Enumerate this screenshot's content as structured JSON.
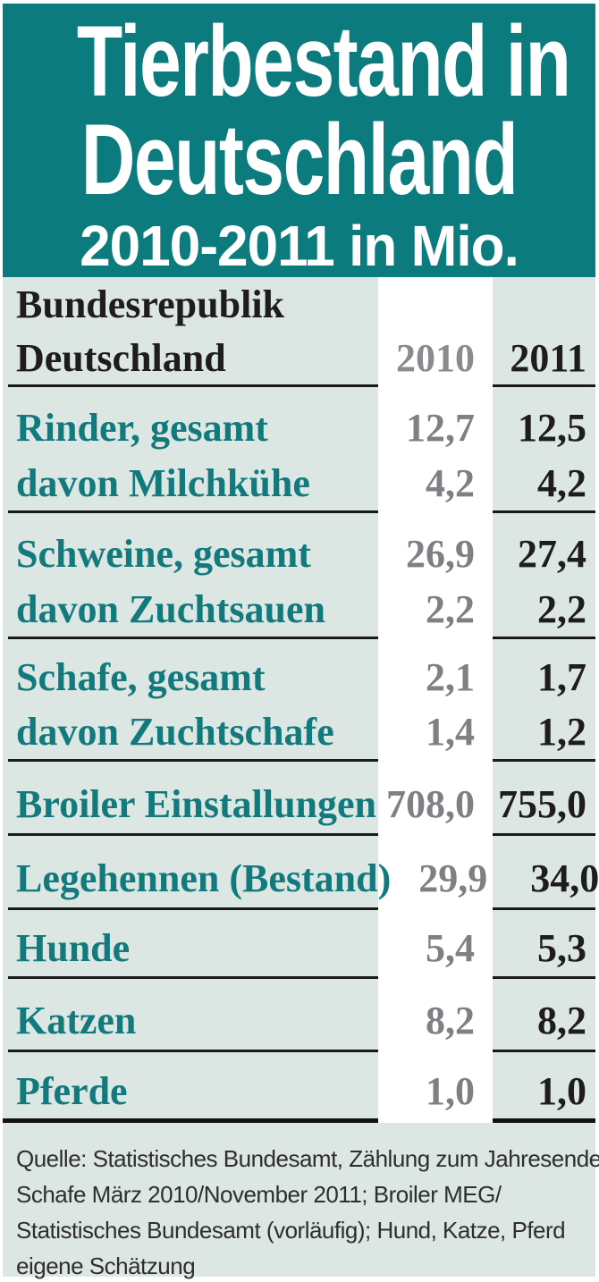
{
  "header": {
    "title_line1": "Tierbestand in",
    "title_line2": "Deutschland",
    "subtitle": "2010-2011 in Mio."
  },
  "table": {
    "region_line1": "Bundesrepublik",
    "region_line2": "Deutschland",
    "col_2010": "2010",
    "col_2011": "2011",
    "groups": [
      {
        "rows": [
          {
            "label": "Rinder, gesamt",
            "v2010": "12,7",
            "v2011": "12,5"
          },
          {
            "label": "davon Milchkühe",
            "v2010": "4,2",
            "v2011": "4,2"
          }
        ]
      },
      {
        "rows": [
          {
            "label": "Schweine, gesamt",
            "v2010": "26,9",
            "v2011": "27,4"
          },
          {
            "label": "davon Zuchtsauen",
            "v2010": "2,2",
            "v2011": "2,2"
          }
        ]
      },
      {
        "rows": [
          {
            "label": "Schafe, gesamt",
            "v2010": "2,1",
            "v2011": "1,7"
          },
          {
            "label": "davon Zuchtschafe",
            "v2010": "1,4",
            "v2011": "1,2"
          }
        ]
      },
      {
        "rows": [
          {
            "label": "Broiler Einstallungen",
            "v2010": "708,0",
            "v2011": "755,0"
          }
        ]
      },
      {
        "rows": [
          {
            "label": "Legehennen (Bestand)",
            "v2010": "29,9",
            "v2011": "34,0"
          }
        ]
      },
      {
        "rows": [
          {
            "label": "Hunde",
            "v2010": "5,4",
            "v2011": "5,3"
          }
        ]
      },
      {
        "rows": [
          {
            "label": "Katzen",
            "v2010": "8,2",
            "v2011": "8,2"
          }
        ]
      },
      {
        "rows": [
          {
            "label": "Pferde",
            "v2010": "1,0",
            "v2011": "1,0"
          }
        ]
      }
    ]
  },
  "footer": {
    "lines": [
      "Quelle: Statistisches Bundesamt, Zählung zum Jahresende,",
      "Schafe März 2010/November 2011; Broiler MEG/",
      "Statistisches Bundesamt (vorläufig); Hund, Katze, Pferd",
      "eigene Schätzung"
    ]
  },
  "colors": {
    "teal_header": "#0c7b7d",
    "teal_label": "#127a7d",
    "light_background": "#dce6e2",
    "highlight_band": "#ffffff",
    "gray_2010": "#7e8083",
    "black_2011": "#1e1c1d",
    "rule": "#1a1a1a"
  },
  "chart_data": {
    "type": "table",
    "title": "Tierbestand in Deutschland",
    "subtitle": "2010-2011 in Mio.",
    "region": "Bundesrepublik Deutschland",
    "unit": "Mio.",
    "categories": [
      "Rinder, gesamt",
      "davon Milchkühe",
      "Schweine, gesamt",
      "davon Zuchtsauen",
      "Schafe, gesamt",
      "davon Zuchtschafe",
      "Broiler Einstallungen",
      "Legehennen (Bestand)",
      "Hunde",
      "Katzen",
      "Pferde"
    ],
    "series": [
      {
        "name": "2010",
        "values": [
          12.7,
          4.2,
          26.9,
          2.2,
          2.1,
          1.4,
          708.0,
          29.9,
          5.4,
          8.2,
          1.0
        ]
      },
      {
        "name": "2011",
        "values": [
          12.5,
          4.2,
          27.4,
          2.2,
          1.7,
          1.2,
          755.0,
          34.0,
          5.3,
          8.2,
          1.0
        ]
      }
    ],
    "source": "Quelle: Statistisches Bundesamt, Zählung zum Jahresende, Schafe März 2010/November 2011; Broiler MEG/Statistisches Bundesamt (vorläufig); Hund, Katze, Pferd eigene Schätzung"
  }
}
